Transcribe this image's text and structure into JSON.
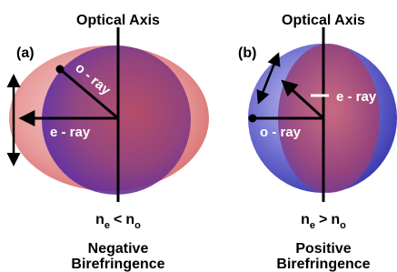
{
  "panels": [
    {
      "label": "(a)",
      "axis_title": "Optical Axis",
      "o_ray": "o - ray",
      "e_ray": "e - ray",
      "relation": [
        "n",
        "e",
        "<",
        "n",
        "o"
      ],
      "caption": [
        "Negative",
        "Birefringence"
      ]
    },
    {
      "label": "(b)",
      "axis_title": "Optical Axis",
      "o_ray": "o - ray",
      "e_ray": "e - ray",
      "relation": [
        "n",
        "e",
        ">",
        "n",
        "o"
      ],
      "caption": [
        "Positive",
        "Birefringence"
      ]
    }
  ]
}
